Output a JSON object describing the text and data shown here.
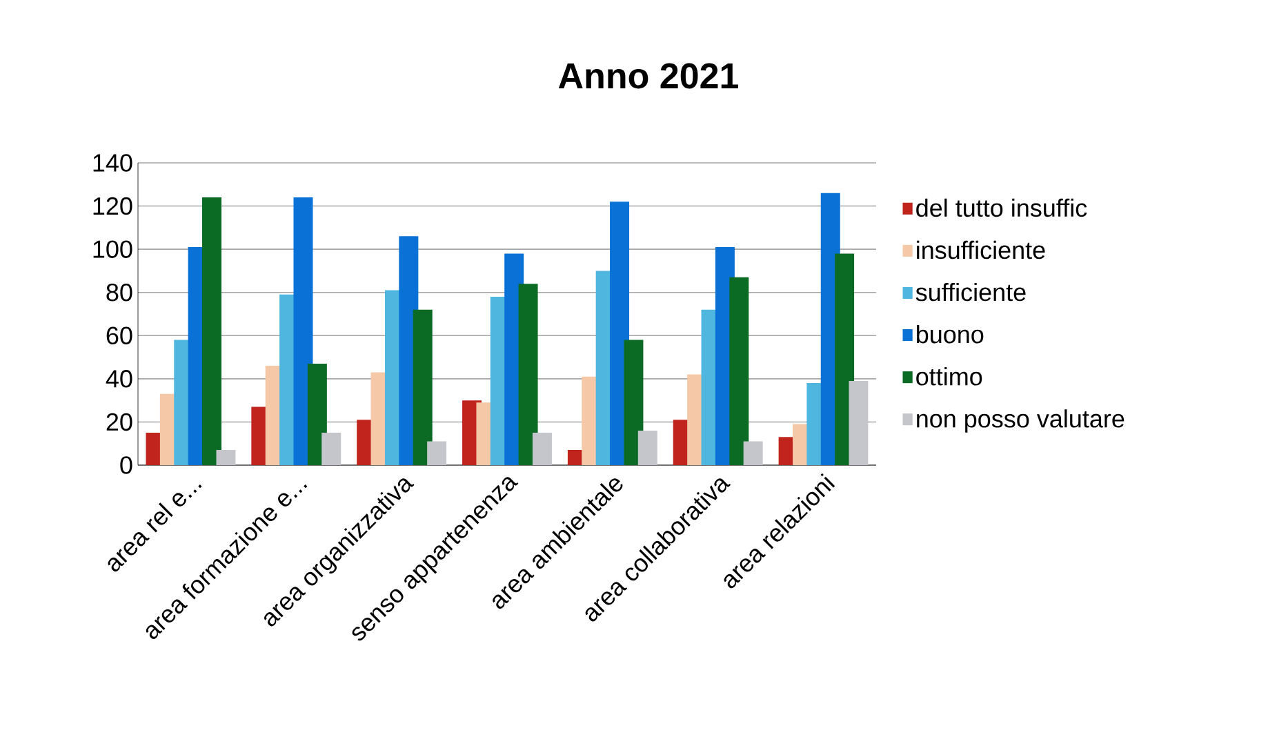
{
  "chart_data": {
    "type": "bar",
    "title": "Anno 2021",
    "categories": [
      "area rel e...",
      "area formazione e...",
      "area organizzativa",
      "senso appartenenza",
      "area ambientale",
      "area collaborativa",
      "area relazioni"
    ],
    "series": [
      {
        "name": "del tutto insuffic",
        "color": "#c0241c",
        "values": [
          15,
          27,
          21,
          30,
          7,
          21,
          13
        ]
      },
      {
        "name": "insufficiente",
        "color": "#f5c8a8",
        "values": [
          33,
          46,
          43,
          29,
          41,
          42,
          19
        ]
      },
      {
        "name": "sufficiente",
        "color": "#4fb6e0",
        "values": [
          58,
          79,
          81,
          78,
          90,
          72,
          38
        ]
      },
      {
        "name": "buono",
        "color": "#0a72d6",
        "values": [
          101,
          124,
          106,
          98,
          122,
          101,
          126
        ]
      },
      {
        "name": "ottimo",
        "color": "#0b6b25",
        "values": [
          124,
          47,
          72,
          84,
          58,
          87,
          98
        ]
      },
      {
        "name": "non posso valutare",
        "color": "#c4c6cc",
        "values": [
          7,
          15,
          11,
          15,
          16,
          11,
          39
        ]
      }
    ],
    "ylim": [
      0,
      140
    ],
    "yticks": [
      0,
      20,
      40,
      60,
      80,
      100,
      120,
      140
    ],
    "grid": "y",
    "legend": "right"
  }
}
